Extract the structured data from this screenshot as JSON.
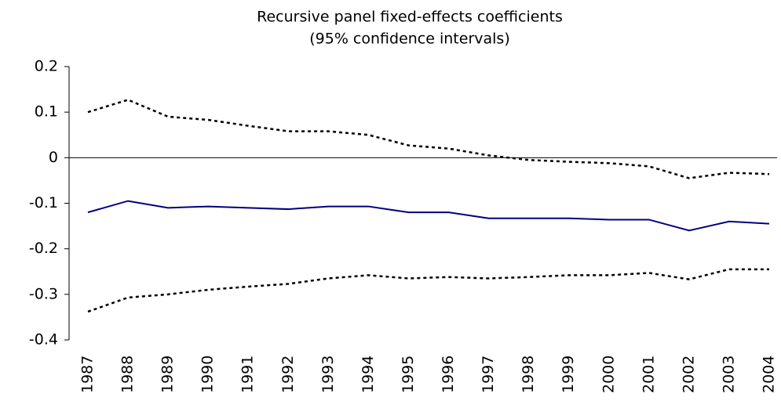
{
  "chart_data": {
    "type": "line",
    "title": "Recursive panel fixed-effects coefficients",
    "subtitle": "(95% confidence intervals)",
    "categories": [
      "1987",
      "1988",
      "1989",
      "1990",
      "1991",
      "1992",
      "1993",
      "1994",
      "1995",
      "1996",
      "1997",
      "1998",
      "1999",
      "2000",
      "2001",
      "2002",
      "2003",
      "2004"
    ],
    "series": [
      {
        "color": "#000080",
        "dashed": false,
        "values": [
          -0.12,
          -0.095,
          -0.11,
          -0.107,
          -0.11,
          -0.113,
          -0.107,
          -0.107,
          -0.12,
          -0.12,
          -0.133,
          -0.133,
          -0.133,
          -0.136,
          -0.136,
          -0.16,
          -0.14,
          -0.145
        ]
      },
      {
        "color": "#000000",
        "dashed": true,
        "values": [
          0.1,
          0.127,
          0.09,
          0.083,
          0.07,
          0.058,
          0.058,
          0.05,
          0.027,
          0.02,
          0.005,
          -0.005,
          -0.009,
          -0.012,
          -0.019,
          -0.045,
          -0.033,
          -0.036
        ]
      },
      {
        "color": "#000000",
        "dashed": true,
        "values": [
          -0.338,
          -0.307,
          -0.3,
          -0.29,
          -0.283,
          -0.277,
          -0.265,
          -0.258,
          -0.265,
          -0.262,
          -0.265,
          -0.262,
          -0.258,
          -0.258,
          -0.253,
          -0.267,
          -0.245,
          -0.245
        ]
      }
    ],
    "ylim": [
      -0.4,
      0.2
    ],
    "yticks": [
      -0.4,
      -0.3,
      -0.2,
      -0.1,
      0,
      0.1,
      0.2
    ],
    "grid": false
  }
}
